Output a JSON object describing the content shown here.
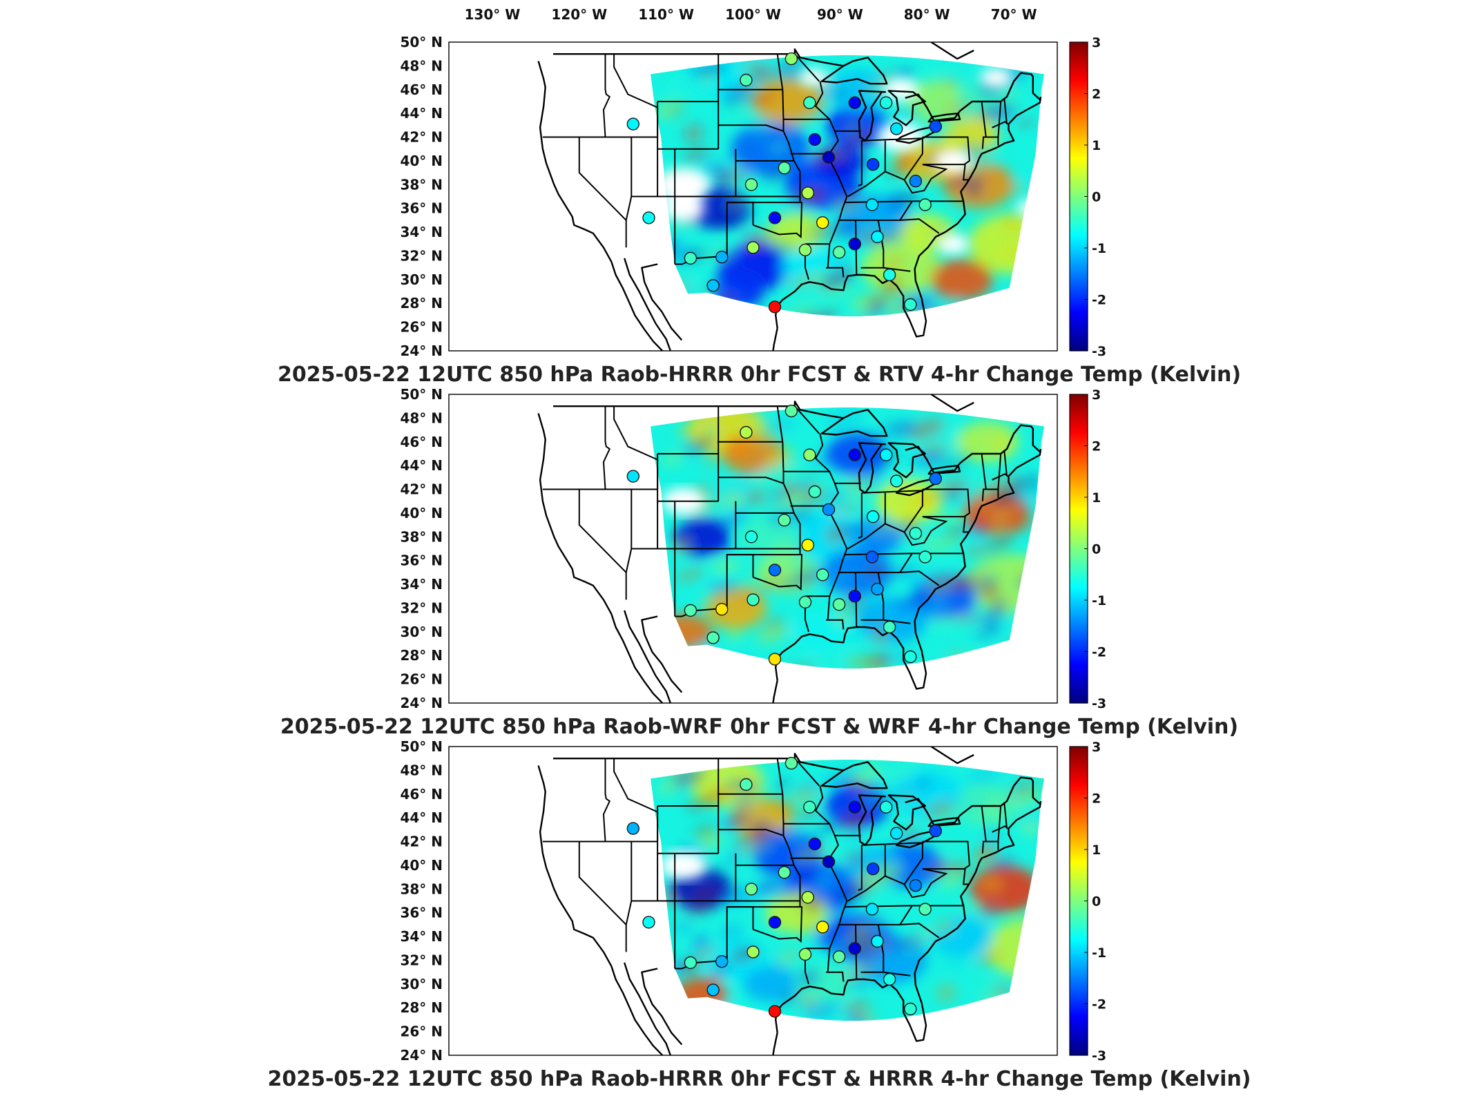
{
  "longitude_labels": [
    "130° W",
    "120° W",
    "110° W",
    "100° W",
    "90° W",
    "80° W",
    "70° W"
  ],
  "latitude_labels": [
    "50° N",
    "48° N",
    "46° N",
    "44° N",
    "42° N",
    "40° N",
    "38° N",
    "36° N",
    "34° N",
    "32° N",
    "30° N",
    "28° N",
    "26° N",
    "24° N"
  ],
  "colorbar": {
    "ticks": [
      "3",
      "2",
      "1",
      "0",
      "-1",
      "-2",
      "-3"
    ],
    "min": -3,
    "max": 3,
    "colormap": "jet",
    "colors": [
      "#00007f",
      "#0000ff",
      "#007fff",
      "#00ffff",
      "#7fff7f",
      "#ffff00",
      "#ff7f00",
      "#ff0000",
      "#7f0000"
    ]
  },
  "panels": [
    {
      "title": "2025-05-22 12UTC 850 hPa Raob-HRRR 0hr FCST & RTV 4-hr Change Temp (Kelvin)",
      "stations": [
        {
          "lon": -95.6,
          "lat": 48.6,
          "v": 0.1
        },
        {
          "lon": -100.8,
          "lat": 46.8,
          "v": -0.3
        },
        {
          "lon": -93.5,
          "lat": 44.9,
          "v": -0.4
        },
        {
          "lon": -88.3,
          "lat": 44.9,
          "v": -2.3
        },
        {
          "lon": -84.7,
          "lat": 44.9,
          "v": -0.6
        },
        {
          "lon": -83.5,
          "lat": 42.7,
          "v": -0.9
        },
        {
          "lon": -79.0,
          "lat": 42.9,
          "v": -1.8
        },
        {
          "lon": -113.8,
          "lat": 43.1,
          "v": -0.8
        },
        {
          "lon": -92.9,
          "lat": 41.8,
          "v": -2.2
        },
        {
          "lon": -91.3,
          "lat": 40.3,
          "v": -2.6
        },
        {
          "lon": -86.2,
          "lat": 39.7,
          "v": -1.9
        },
        {
          "lon": -96.4,
          "lat": 39.4,
          "v": -0.2
        },
        {
          "lon": -81.3,
          "lat": 38.3,
          "v": -1.5
        },
        {
          "lon": -100.2,
          "lat": 38.0,
          "v": -0.1
        },
        {
          "lon": -93.7,
          "lat": 37.3,
          "v": 0.3
        },
        {
          "lon": -86.3,
          "lat": 36.3,
          "v": -0.9
        },
        {
          "lon": -80.2,
          "lat": 36.3,
          "v": -0.3
        },
        {
          "lon": -97.5,
          "lat": 35.2,
          "v": -2.2
        },
        {
          "lon": -92.0,
          "lat": 34.8,
          "v": 0.8
        },
        {
          "lon": -112.0,
          "lat": 35.2,
          "v": -0.7
        },
        {
          "lon": -88.3,
          "lat": 33.0,
          "v": -2.5
        },
        {
          "lon": -85.7,
          "lat": 33.6,
          "v": -0.8
        },
        {
          "lon": -100.0,
          "lat": 32.7,
          "v": 0.2
        },
        {
          "lon": -94.0,
          "lat": 32.5,
          "v": 0.1
        },
        {
          "lon": -90.1,
          "lat": 32.3,
          "v": -0.2
        },
        {
          "lon": -103.6,
          "lat": 31.9,
          "v": -1.2
        },
        {
          "lon": -107.2,
          "lat": 31.8,
          "v": -0.4
        },
        {
          "lon": -84.3,
          "lat": 30.4,
          "v": -0.6
        },
        {
          "lon": -104.6,
          "lat": 29.5,
          "v": -1.1
        },
        {
          "lon": -97.5,
          "lat": 27.7,
          "v": 2.2
        },
        {
          "lon": -81.9,
          "lat": 27.9,
          "v": -0.5
        }
      ]
    },
    {
      "title": "2025-05-22 12UTC 850 hPa Raob-WRF 0hr FCST & WRF 4-hr Change Temp (Kelvin)",
      "stations": [
        {
          "lon": -95.6,
          "lat": 48.6,
          "v": -0.2
        },
        {
          "lon": -100.8,
          "lat": 46.8,
          "v": 0.3
        },
        {
          "lon": -93.5,
          "lat": 44.9,
          "v": 0.1
        },
        {
          "lon": -88.3,
          "lat": 44.9,
          "v": -2.3
        },
        {
          "lon": -84.7,
          "lat": 44.9,
          "v": -0.8
        },
        {
          "lon": -83.5,
          "lat": 42.7,
          "v": -0.6
        },
        {
          "lon": -79.0,
          "lat": 42.9,
          "v": -1.6
        },
        {
          "lon": -113.8,
          "lat": 43.1,
          "v": -0.9
        },
        {
          "lon": -92.9,
          "lat": 41.8,
          "v": -0.4
        },
        {
          "lon": -91.3,
          "lat": 40.3,
          "v": -1.4
        },
        {
          "lon": -86.2,
          "lat": 39.7,
          "v": -0.7
        },
        {
          "lon": -96.4,
          "lat": 39.4,
          "v": -0.2
        },
        {
          "lon": -81.3,
          "lat": 38.3,
          "v": -0.5
        },
        {
          "lon": -100.2,
          "lat": 38.0,
          "v": -0.6
        },
        {
          "lon": -93.7,
          "lat": 37.3,
          "v": 0.8
        },
        {
          "lon": -86.3,
          "lat": 36.3,
          "v": -1.7
        },
        {
          "lon": -80.2,
          "lat": 36.3,
          "v": -0.5
        },
        {
          "lon": -97.5,
          "lat": 35.2,
          "v": -1.6
        },
        {
          "lon": -92.0,
          "lat": 34.8,
          "v": -0.3
        },
        {
          "lon": -88.3,
          "lat": 33.0,
          "v": -2.2
        },
        {
          "lon": -85.7,
          "lat": 33.6,
          "v": -1.3
        },
        {
          "lon": -100.0,
          "lat": 32.7,
          "v": -0.4
        },
        {
          "lon": -94.0,
          "lat": 32.5,
          "v": -0.3
        },
        {
          "lon": -90.1,
          "lat": 32.3,
          "v": -0.2
        },
        {
          "lon": -103.6,
          "lat": 31.9,
          "v": 0.9
        },
        {
          "lon": -107.2,
          "lat": 31.8,
          "v": -0.3
        },
        {
          "lon": -84.3,
          "lat": 30.4,
          "v": -0.4
        },
        {
          "lon": -104.6,
          "lat": 29.5,
          "v": -0.3
        },
        {
          "lon": -97.5,
          "lat": 27.7,
          "v": 0.9
        },
        {
          "lon": -81.9,
          "lat": 27.9,
          "v": -0.6
        }
      ]
    },
    {
      "title": "2025-05-22 12UTC 850 hPa Raob-HRRR 0hr FCST & HRRR 4-hr Change Temp (Kelvin)",
      "stations": [
        {
          "lon": -95.6,
          "lat": 48.6,
          "v": -0.2
        },
        {
          "lon": -100.8,
          "lat": 46.8,
          "v": -0.3
        },
        {
          "lon": -93.5,
          "lat": 44.9,
          "v": -0.4
        },
        {
          "lon": -88.3,
          "lat": 44.9,
          "v": -2.3
        },
        {
          "lon": -84.7,
          "lat": 44.9,
          "v": -0.6
        },
        {
          "lon": -83.5,
          "lat": 42.7,
          "v": -0.9
        },
        {
          "lon": -79.0,
          "lat": 42.9,
          "v": -1.8
        },
        {
          "lon": -113.8,
          "lat": 43.1,
          "v": -1.2
        },
        {
          "lon": -92.9,
          "lat": 41.8,
          "v": -2.2
        },
        {
          "lon": -91.3,
          "lat": 40.3,
          "v": -2.6
        },
        {
          "lon": -86.2,
          "lat": 39.7,
          "v": -1.9
        },
        {
          "lon": -96.4,
          "lat": 39.4,
          "v": -0.2
        },
        {
          "lon": -81.3,
          "lat": 38.3,
          "v": -1.5
        },
        {
          "lon": -100.2,
          "lat": 38.0,
          "v": -0.1
        },
        {
          "lon": -93.7,
          "lat": 37.3,
          "v": 0.3
        },
        {
          "lon": -86.3,
          "lat": 36.3,
          "v": -0.9
        },
        {
          "lon": -80.2,
          "lat": 36.3,
          "v": -0.3
        },
        {
          "lon": -97.5,
          "lat": 35.2,
          "v": -2.2
        },
        {
          "lon": -92.0,
          "lat": 34.8,
          "v": 0.8
        },
        {
          "lon": -112.0,
          "lat": 35.2,
          "v": -0.7
        },
        {
          "lon": -88.3,
          "lat": 33.0,
          "v": -2.5
        },
        {
          "lon": -85.7,
          "lat": 33.6,
          "v": -0.8
        },
        {
          "lon": -100.0,
          "lat": 32.7,
          "v": 0.2
        },
        {
          "lon": -94.0,
          "lat": 32.5,
          "v": 0.1
        },
        {
          "lon": -90.1,
          "lat": 32.3,
          "v": -0.2
        },
        {
          "lon": -103.6,
          "lat": 31.9,
          "v": -1.2
        },
        {
          "lon": -107.2,
          "lat": 31.8,
          "v": -0.4
        },
        {
          "lon": -84.3,
          "lat": 30.4,
          "v": -0.6
        },
        {
          "lon": -104.6,
          "lat": 29.5,
          "v": -1.1
        },
        {
          "lon": -97.5,
          "lat": 27.7,
          "v": 2.2
        },
        {
          "lon": -81.9,
          "lat": 27.9,
          "v": -0.5
        }
      ]
    }
  ]
}
